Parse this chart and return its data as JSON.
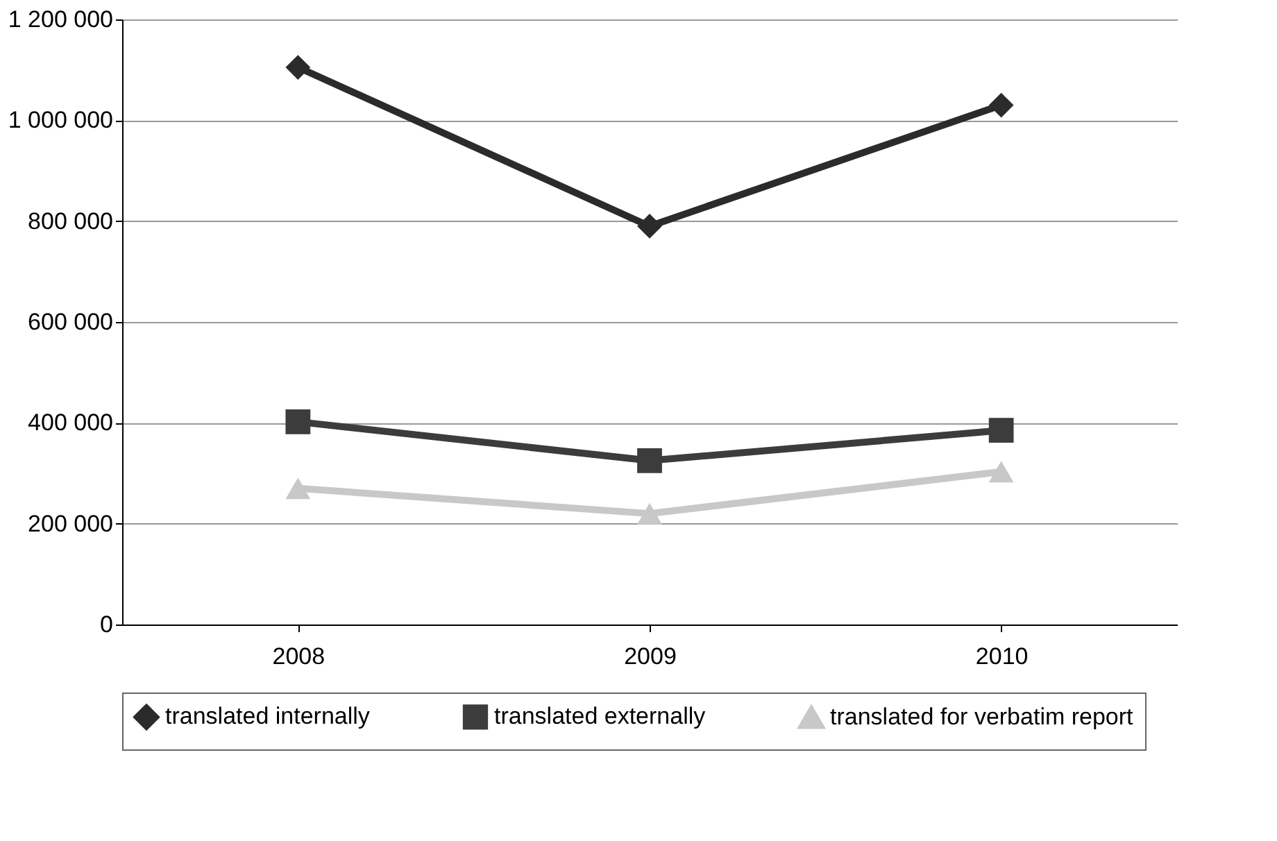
{
  "chart_data": {
    "type": "line",
    "categories": [
      "2008",
      "2009",
      "2010"
    ],
    "series": [
      {
        "name": "translated internally",
        "color": "#2b2b2b",
        "marker": "diamond",
        "values": [
          1105000,
          790000,
          1030000
        ]
      },
      {
        "name": "translated externally",
        "color": "#3c3c3c",
        "marker": "square",
        "values": [
          402000,
          325000,
          385000
        ]
      },
      {
        "name": "translated for verbatim report",
        "color": "#c8c8c8",
        "marker": "triangle",
        "values": [
          270000,
          220000,
          303000
        ]
      }
    ],
    "ylim": [
      0,
      1200000
    ],
    "yticks": [
      {
        "value": 0,
        "label": "0"
      },
      {
        "value": 200000,
        "label": "200 000"
      },
      {
        "value": 400000,
        "label": "400 000"
      },
      {
        "value": 600000,
        "label": "600 000"
      },
      {
        "value": 800000,
        "label": "800 000"
      },
      {
        "value": 1000000,
        "label": "1 000 000"
      },
      {
        "value": 1200000,
        "label": "1 200 000"
      }
    ],
    "grid": "y",
    "legend": "bottom"
  }
}
